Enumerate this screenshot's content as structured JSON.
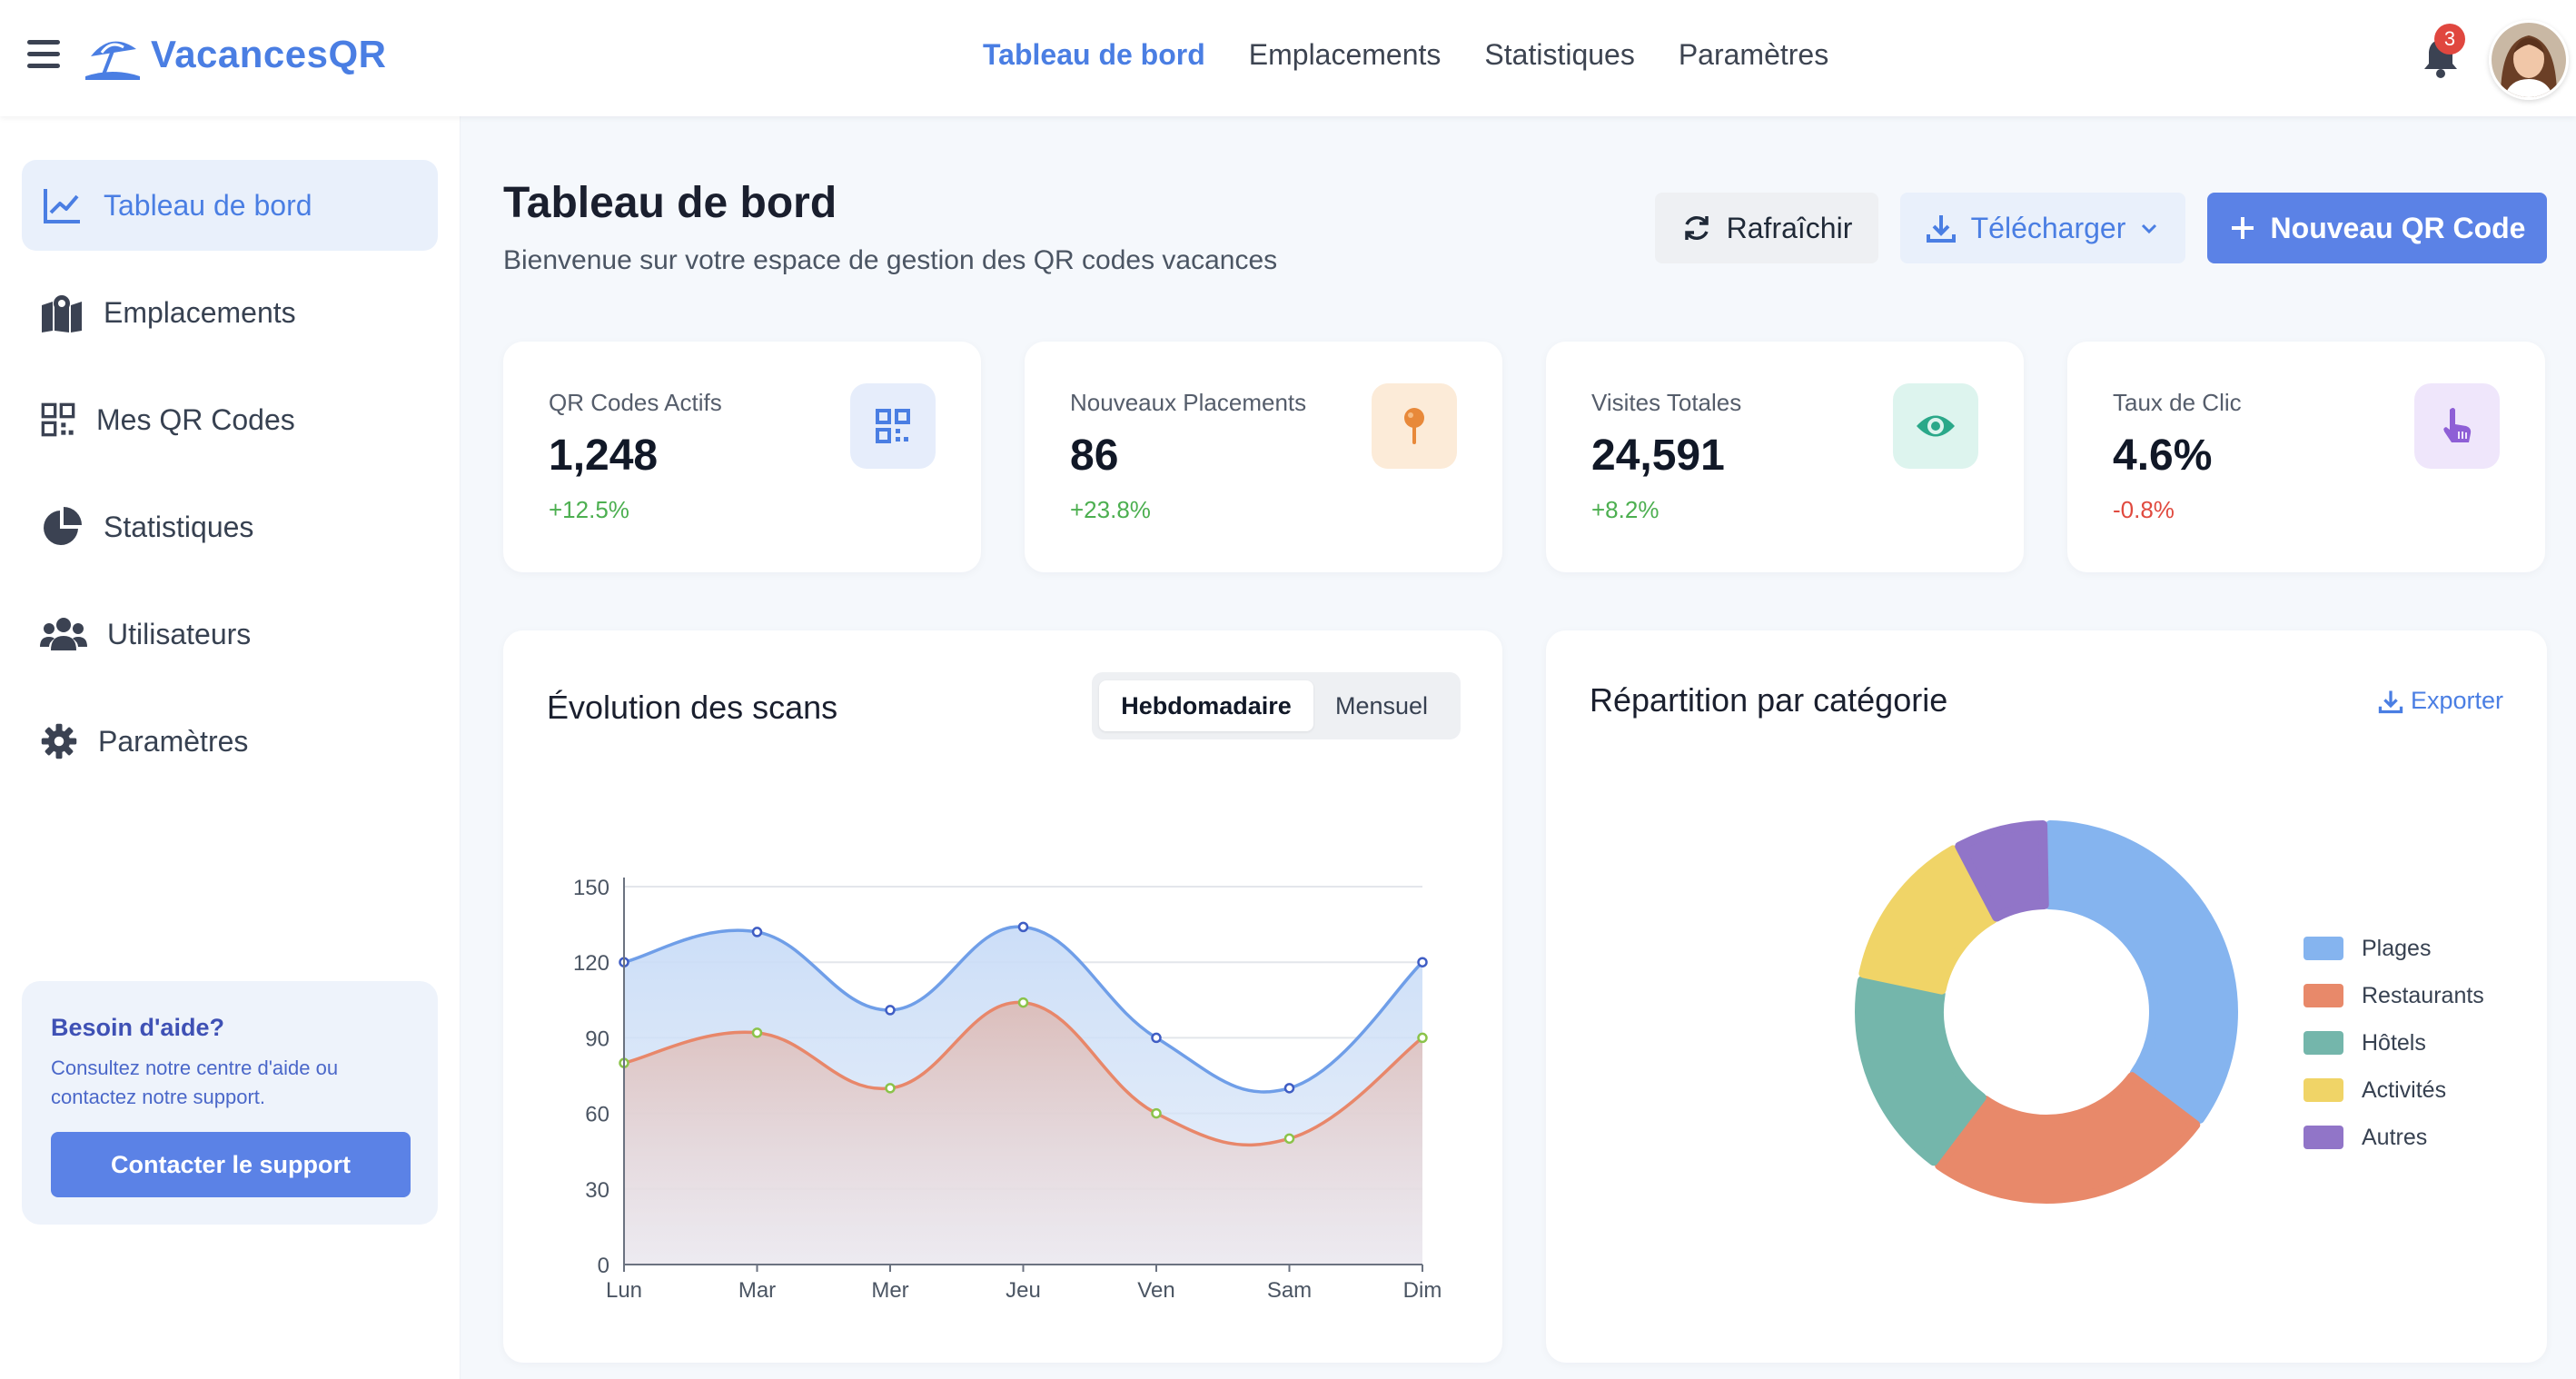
{
  "app": {
    "name": "VacancesQR",
    "notification_count": "3",
    "accent": "#4a7ee3"
  },
  "topnav": [
    {
      "label": "Tableau de bord",
      "active": true
    },
    {
      "label": "Emplacements",
      "active": false
    },
    {
      "label": "Statistiques",
      "active": false
    },
    {
      "label": "Paramètres",
      "active": false
    }
  ],
  "sidebar": {
    "items": [
      {
        "label": "Tableau de bord",
        "icon": "chart-line-icon",
        "active": true
      },
      {
        "label": "Emplacements",
        "icon": "map-marker-icon",
        "active": false
      },
      {
        "label": "Mes QR Codes",
        "icon": "qr-code-icon",
        "active": false
      },
      {
        "label": "Statistiques",
        "icon": "pie-chart-icon",
        "active": false
      },
      {
        "label": "Utilisateurs",
        "icon": "users-icon",
        "active": false
      },
      {
        "label": "Paramètres",
        "icon": "gear-icon",
        "active": false
      }
    ],
    "help": {
      "title": "Besoin d'aide?",
      "text": "Consultez notre centre d'aide ou contactez notre support.",
      "button": "Contacter le support"
    }
  },
  "header": {
    "title": "Tableau de bord",
    "subtitle": "Bienvenue sur votre espace de gestion des QR codes vacances",
    "refresh_label": "Rafraîchir",
    "download_label": "Télécharger",
    "new_label": "Nouveau QR Code"
  },
  "stats": [
    {
      "label": "QR Codes Actifs",
      "value": "1,248",
      "change": "+12.5%",
      "trend": "up",
      "icon": "qr-code-icon",
      "color": "#4a7ee3"
    },
    {
      "label": "Nouveaux Placements",
      "value": "86",
      "change": "+23.8%",
      "trend": "up",
      "icon": "pin-icon",
      "color": "#e8893a"
    },
    {
      "label": "Visites Totales",
      "value": "24,591",
      "change": "+8.2%",
      "trend": "up",
      "icon": "eye-icon",
      "color": "#2aa889"
    },
    {
      "label": "Taux de Clic",
      "value": "4.6%",
      "change": "-0.8%",
      "trend": "down",
      "icon": "pointer-click-icon",
      "color": "#8e5fd6"
    }
  ],
  "scans_card": {
    "title": "Évolution des scans",
    "toggle_on": "Hebdomadaire",
    "toggle_off": "Mensuel"
  },
  "category_card": {
    "title": "Répartition par catégorie",
    "export_label": "Exporter"
  },
  "chart_data": [
    {
      "type": "area",
      "categories": [
        "Lun",
        "Mar",
        "Mer",
        "Jeu",
        "Ven",
        "Sam",
        "Dim"
      ],
      "series": [
        {
          "values": [
            120,
            132,
            101,
            134,
            90,
            70,
            120
          ],
          "color": "#6f9ee8"
        },
        {
          "values": [
            80,
            92,
            70,
            104,
            60,
            50,
            90
          ],
          "color": "#e8876a"
        }
      ],
      "yticks": [
        "0",
        "30",
        "60",
        "90",
        "120",
        "150"
      ],
      "ylim": [
        0,
        150
      ],
      "grid": true
    },
    {
      "type": "pie",
      "labels": [
        "Plages",
        "Restaurants",
        "Hôtels",
        "Activités",
        "Autres"
      ],
      "values": [
        35,
        25,
        18,
        14,
        8
      ],
      "colors": [
        "#85b4ef",
        "#e8896a",
        "#74b6ab",
        "#f0d467",
        "#9175c8"
      ],
      "legend": "right"
    }
  ]
}
